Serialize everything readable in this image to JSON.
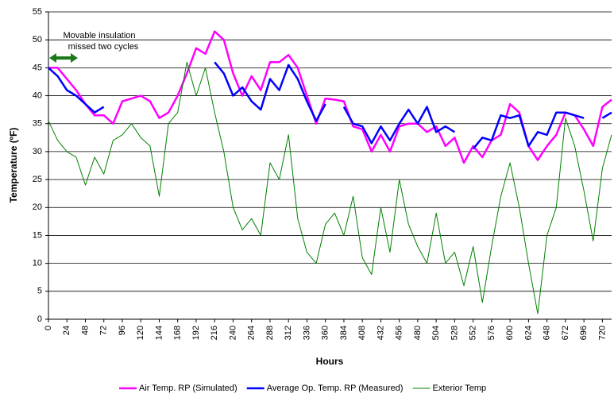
{
  "chart_data": {
    "type": "line",
    "y_label": "Temperature (ºF)",
    "x_label": "Hours",
    "annotation": [
      "Movable insulation",
      "missed two cycles"
    ],
    "x": [
      0,
      12,
      24,
      36,
      48,
      60,
      72,
      84,
      96,
      108,
      120,
      132,
      144,
      156,
      168,
      180,
      192,
      204,
      216,
      228,
      240,
      252,
      264,
      276,
      288,
      300,
      312,
      324,
      336,
      348,
      360,
      372,
      384,
      396,
      408,
      420,
      432,
      444,
      456,
      468,
      480,
      492,
      504,
      516,
      528,
      540,
      552,
      564,
      576,
      588,
      600,
      612,
      624,
      636,
      648,
      660,
      672,
      684,
      696,
      708,
      720,
      732
    ],
    "xlim": [
      0,
      732
    ],
    "xticks": [
      0,
      24,
      48,
      72,
      96,
      120,
      144,
      168,
      192,
      216,
      240,
      264,
      288,
      312,
      336,
      360,
      384,
      408,
      432,
      456,
      480,
      504,
      528,
      552,
      576,
      600,
      624,
      648,
      672,
      696,
      720
    ],
    "ylim": [
      0,
      55
    ],
    "yticks": [
      0,
      5,
      10,
      15,
      20,
      25,
      30,
      35,
      40,
      45,
      50,
      55
    ],
    "grid": true,
    "series": [
      {
        "name": "Air Temp. RP (Simulated)",
        "color": "#ff00ff",
        "width": 2.5,
        "values": [
          45,
          45,
          43,
          41,
          38.5,
          36.5,
          36.5,
          35,
          39,
          39.5,
          40,
          39,
          36,
          37,
          40,
          44,
          48.5,
          47.5,
          51.5,
          50,
          44,
          40,
          43.5,
          41,
          46,
          46,
          47.3,
          45,
          40,
          35,
          39.5,
          39.3,
          39,
          34.5,
          34,
          30,
          33,
          30,
          34.5,
          35,
          35,
          33.5,
          34.5,
          31,
          32.5,
          28,
          31,
          29,
          32,
          33,
          38.5,
          37,
          31,
          28.5,
          31,
          33,
          37,
          36.5,
          34,
          31,
          38,
          39.3
        ]
      },
      {
        "name": "Average Op. Temp. RP  (Measured)",
        "color": "#0000ff",
        "width": 2.5,
        "values": [
          45,
          43.5,
          41,
          40,
          38.5,
          37,
          38,
          null,
          null,
          null,
          null,
          null,
          null,
          null,
          null,
          null,
          null,
          null,
          46,
          44,
          40,
          41.5,
          39,
          37.5,
          43,
          41,
          45.5,
          43,
          39,
          35.5,
          38.5,
          null,
          38,
          35,
          34.5,
          31.5,
          34.5,
          32,
          35,
          37.5,
          35,
          38,
          33.5,
          34.5,
          33.5,
          null,
          30.5,
          32.5,
          32,
          36.5,
          36,
          36.5,
          31,
          33.5,
          33,
          37,
          37,
          36.5,
          36,
          null,
          36,
          37
        ]
      },
      {
        "name": "Exterior Temp",
        "color": "#008000",
        "width": 1,
        "values": [
          35.5,
          32,
          30,
          29,
          24,
          29,
          26,
          32,
          33,
          35,
          32.5,
          31,
          22,
          35,
          37,
          46,
          40,
          45,
          37,
          30,
          20,
          16,
          18,
          15,
          28,
          25,
          33,
          18,
          12,
          10,
          17,
          19,
          15,
          22,
          11,
          8,
          20,
          12,
          25,
          17,
          13,
          10,
          19,
          10,
          12,
          6,
          13,
          3,
          13,
          22,
          28,
          20,
          10,
          1,
          15,
          20,
          36,
          31,
          23,
          14,
          27,
          33
        ]
      }
    ]
  }
}
